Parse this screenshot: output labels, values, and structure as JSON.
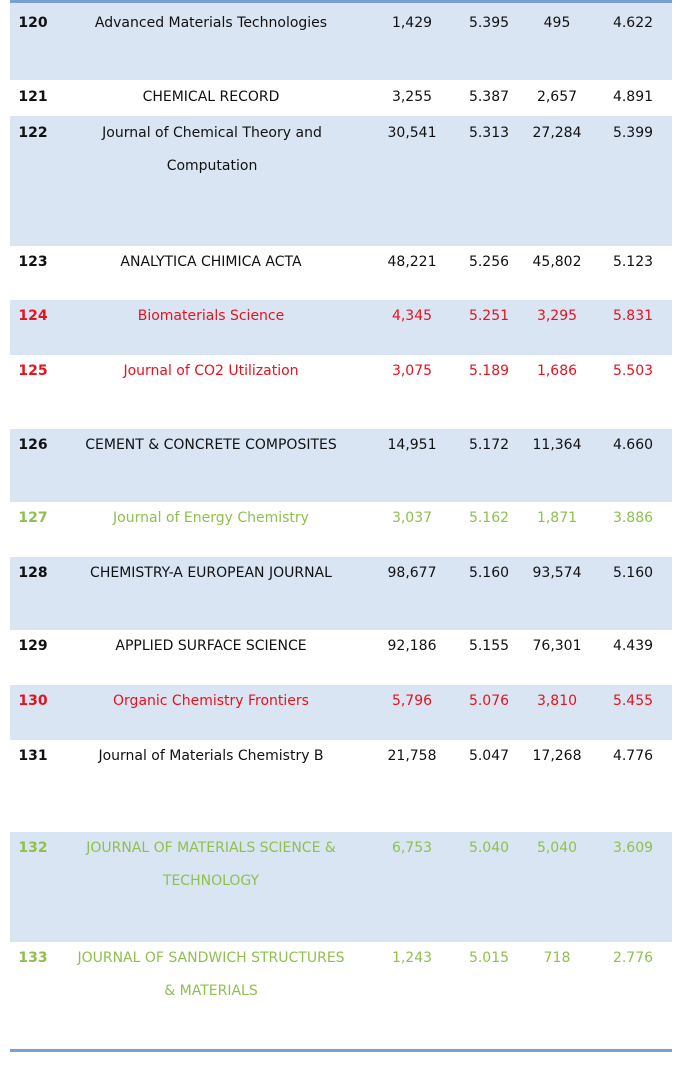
{
  "rows": [
    {
      "rank": "120",
      "title": "Advanced Materials Technologies",
      "total_cites": "1,429",
      "impact_factor": "5.395",
      "cites_excl": "495",
      "five_year_if": "4.622"
    },
    {
      "rank": "121",
      "title": "CHEMICAL RECORD",
      "total_cites": "3,255",
      "impact_factor": "5.387",
      "cites_excl": "2,657",
      "five_year_if": "4.891"
    },
    {
      "rank": "122",
      "title": "Journal of Chemical Theory and Computation",
      "total_cites": "30,541",
      "impact_factor": "5.313",
      "cites_excl": "27,284",
      "five_year_if": "5.399"
    },
    {
      "rank": "123",
      "title": "ANALYTICA CHIMICA ACTA",
      "total_cites": "48,221",
      "impact_factor": "5.256",
      "cites_excl": "45,802",
      "five_year_if": "5.123"
    },
    {
      "rank": "124",
      "title": "Biomaterials Science",
      "total_cites": "4,345",
      "impact_factor": "5.251",
      "cites_excl": "3,295",
      "five_year_if": "5.831",
      "color": "#e8111f"
    },
    {
      "rank": "125",
      "title": "Journal of CO2 Utilization",
      "total_cites": "3,075",
      "impact_factor": "5.189",
      "cites_excl": "1,686",
      "five_year_if": "5.503",
      "color": "#e8111f"
    },
    {
      "rank": "126",
      "title": "CEMENT & CONCRETE COMPOSITES",
      "total_cites": "14,951",
      "impact_factor": "5.172",
      "cites_excl": "11,364",
      "five_year_if": "4.660"
    },
    {
      "rank": "127",
      "title": "Journal of Energy Chemistry",
      "total_cites": "3,037",
      "impact_factor": "5.162",
      "cites_excl": "1,871",
      "five_year_if": "3.886",
      "color": "#8fc04e"
    },
    {
      "rank": "128",
      "title": "CHEMISTRY-A EUROPEAN JOURNAL",
      "total_cites": "98,677",
      "impact_factor": "5.160",
      "cites_excl": "93,574",
      "five_year_if": "5.160"
    },
    {
      "rank": "129",
      "title": "APPLIED SURFACE SCIENCE",
      "total_cites": "92,186",
      "impact_factor": "5.155",
      "cites_excl": "76,301",
      "five_year_if": "4.439"
    },
    {
      "rank": "130",
      "title": "Organic Chemistry Frontiers",
      "total_cites": "5,796",
      "impact_factor": "5.076",
      "cites_excl": "3,810",
      "five_year_if": "5.455",
      "color": "#e8111f"
    },
    {
      "rank": "131",
      "title": "Journal of Materials Chemistry B",
      "total_cites": "21,758",
      "impact_factor": "5.047",
      "cites_excl": "17,268",
      "five_year_if": "4.776"
    },
    {
      "rank": "132",
      "title": "JOURNAL OF MATERIALS SCIENCE & TECHNOLOGY",
      "total_cites": "6,753",
      "impact_factor": "5.040",
      "cites_excl": "5,040",
      "five_year_if": "3.609",
      "color": "#8fc04e"
    },
    {
      "rank": "133",
      "title": "JOURNAL OF SANDWICH STRUCTURES & MATERIALS",
      "total_cites": "1,243",
      "impact_factor": "5.015",
      "cites_excl": "718",
      "five_year_if": "2.776",
      "color": "#8fc04e"
    }
  ]
}
